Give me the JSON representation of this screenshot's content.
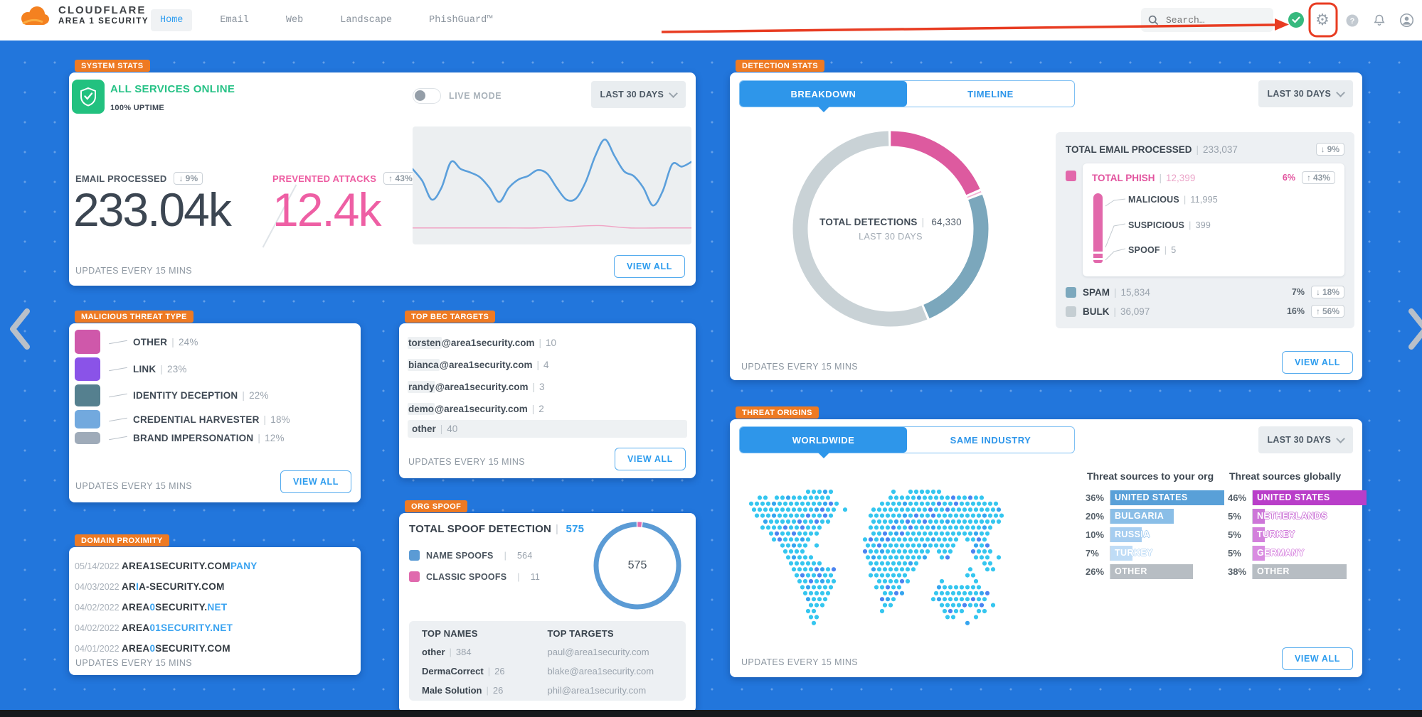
{
  "nav": {
    "brand": {
      "line1": "CLOUDFLARE",
      "line2": "AREA 1 SECURITY"
    },
    "items": [
      {
        "label": "Home",
        "active": true
      },
      {
        "label": "Email",
        "active": false
      },
      {
        "label": "Web",
        "active": false
      },
      {
        "label": "Landscape",
        "active": false
      },
      {
        "label": "PhishGuard™",
        "active": false
      }
    ],
    "search_placeholder": "Search…"
  },
  "annotation": {
    "color": "#e83c22"
  },
  "cards": {
    "system": {
      "tag": "SYSTEM STATS",
      "status": "ALL SERVICES ONLINE",
      "uptime": "100% UPTIME",
      "live_mode": "LIVE MODE",
      "range": "LAST 30 DAYS",
      "email": {
        "label": "EMAIL PROCESSED",
        "arrow": "↓",
        "badge": "9%",
        "value": "233.04k"
      },
      "attacks": {
        "label": "PREVENTED ATTACKS",
        "arrow": "↑",
        "badge": "43%",
        "value": "12.4k"
      },
      "updates": "UPDATES EVERY 15 MINS",
      "view_all": "VIEW ALL"
    },
    "mtt": {
      "tag": "MALICIOUS THREAT TYPE",
      "items": [
        {
          "label": "OTHER",
          "pct": 24,
          "pct_label": "24%",
          "color": "#cf58aa"
        },
        {
          "label": "LINK",
          "pct": 23,
          "pct_label": "23%",
          "color": "#8a53e8"
        },
        {
          "label": "IDENTITY DECEPTION",
          "pct": 22,
          "pct_label": "22%",
          "color": "#55808f"
        },
        {
          "label": "CREDENTIAL HARVESTER",
          "pct": 18,
          "pct_label": "18%",
          "color": "#72a9de"
        },
        {
          "label": "BRAND IMPERSONATION",
          "pct": 12,
          "pct_label": "12%",
          "color": "#9fabb9"
        }
      ],
      "updates": "UPDATES EVERY 15 MINS",
      "view_all": "VIEW ALL"
    },
    "domain": {
      "tag": "DOMAIN PROXIMITY",
      "rows": [
        {
          "date": "05/14/2022",
          "segments": [
            {
              "t": "AREA1SECURITY.COM",
              "hl": false
            },
            {
              "t": "PANY",
              "hl": true
            }
          ]
        },
        {
          "date": "04/03/2022",
          "segments": [
            {
              "t": "AR",
              "hl": false
            },
            {
              "t": "I",
              "hl": true
            },
            {
              "t": "A-SECURITY.COM",
              "hl": false
            }
          ]
        },
        {
          "date": "04/02/2022",
          "segments": [
            {
              "t": "AREA",
              "hl": false
            },
            {
              "t": "0",
              "hl": true
            },
            {
              "t": "SECURITY.",
              "hl": false
            },
            {
              "t": "NET",
              "hl": true
            }
          ]
        },
        {
          "date": "04/02/2022",
          "segments": [
            {
              "t": "AREA",
              "hl": false
            },
            {
              "t": "01SECURITY.NET",
              "hl": true
            }
          ]
        },
        {
          "date": "04/01/2022",
          "segments": [
            {
              "t": "AREA",
              "hl": false
            },
            {
              "t": "0",
              "hl": true
            },
            {
              "t": "SECURITY.COM",
              "hl": false
            }
          ]
        }
      ],
      "updates": "UPDATES EVERY 15 MINS"
    },
    "bec": {
      "tag": "TOP BEC TARGETS",
      "rows": [
        {
          "user": "torsten",
          "domain": "@area1security.com",
          "count": "10"
        },
        {
          "user": "bianca",
          "domain": "@area1security.com",
          "count": "4"
        },
        {
          "user": "randy",
          "domain": "@area1security.com",
          "count": "3"
        },
        {
          "user": "demo",
          "domain": "@area1security.com",
          "count": "2"
        }
      ],
      "other": {
        "label": "other",
        "count": "40"
      },
      "updates": "UPDATES EVERY 15 MINS",
      "view_all": "VIEW ALL"
    },
    "spoof": {
      "tag": "ORG SPOOF",
      "title": "TOTAL SPOOF DETECTION",
      "total": "575",
      "legend": [
        {
          "label": "NAME SPOOFS",
          "value": "564",
          "color": "#5b9bd5"
        },
        {
          "label": "CLASSIC SPOOFS",
          "value": "11",
          "color": "#e06aae"
        }
      ],
      "donut_segments": [
        {
          "v": 11,
          "c": "#e06aae"
        },
        {
          "v": 564,
          "c": "#5b9bd5"
        }
      ],
      "names_header": "TOP NAMES",
      "names": [
        {
          "label": "other",
          "value": "384"
        },
        {
          "label": "DermaCorrect",
          "value": "26"
        },
        {
          "label": "Male Solution",
          "value": "26"
        }
      ],
      "targets_header": "TOP TARGETS",
      "targets": [
        "paul@area1security.com",
        "blake@area1security.com",
        "phil@area1security.com"
      ]
    },
    "detect": {
      "tag": "DETECTION STATS",
      "tab1": "BREAKDOWN",
      "tab2": "TIMELINE",
      "range": "LAST 30 DAYS",
      "donut": {
        "center_label": "TOTAL DETECTIONS",
        "center_value": "64,330",
        "center_sub": "LAST 30 DAYS",
        "segments": [
          {
            "v": 11995,
            "c": "#dd5a9f"
          },
          {
            "v": 404,
            "c": "#f2b3d4"
          },
          {
            "v": 15834,
            "c": "#7ba7bc"
          },
          {
            "v": 36097,
            "c": "#c9d2d6"
          }
        ]
      },
      "total_row": {
        "label": "TOTAL EMAIL PROCESSED",
        "value": "233,037",
        "arrow": "↓",
        "badge": "9%"
      },
      "phish": {
        "label": "TOTAL PHISH",
        "value": "12,399",
        "pct": "6%",
        "arrow": "↑",
        "badge": "43%",
        "color": "#e268ab",
        "sub": [
          {
            "label": "MALICIOUS",
            "value": "11,995"
          },
          {
            "label": "SUSPICIOUS",
            "value": "399"
          },
          {
            "label": "SPOOF",
            "value": "5"
          }
        ]
      },
      "spam": {
        "label": "SPAM",
        "value": "15,834",
        "pct": "7%",
        "arrow": "↓",
        "badge": "18%",
        "color": "#7ca8bd"
      },
      "bulk": {
        "label": "BULK",
        "value": "36,097",
        "pct": "16%",
        "arrow": "↑",
        "badge": "56%",
        "color": "#c5ced3"
      },
      "updates": "UPDATES EVERY 15 MINS",
      "view_all": "VIEW ALL"
    },
    "threat": {
      "tag": "THREAT ORIGINS",
      "tab1": "WORLDWIDE",
      "tab2": "SAME INDUSTRY",
      "range": "LAST 30 DAYS",
      "org_heading": "Threat sources to your org",
      "global_heading": "Threat sources globally",
      "org_rows": [
        {
          "pct": 36,
          "pct_label": "36%",
          "label": "UNITED STATES",
          "color": "#59a0d8"
        },
        {
          "pct": 20,
          "pct_label": "20%",
          "label": "BULGARIA",
          "color": "#8abee7"
        },
        {
          "pct": 10,
          "pct_label": "10%",
          "label": "RUSSIA",
          "color": "#a6cdf0"
        },
        {
          "pct": 7,
          "pct_label": "7%",
          "label": "TURKEY",
          "color": "#bfdcf6"
        },
        {
          "pct": 26,
          "pct_label": "26%",
          "label": "OTHER",
          "color": "#b7bdc3"
        }
      ],
      "global_rows": [
        {
          "pct": 46,
          "pct_label": "46%",
          "label": "UNITED STATES",
          "color": "#b93ec9"
        },
        {
          "pct": 5,
          "pct_label": "5%",
          "label": "NETHERLANDS",
          "color": "#cd76d8"
        },
        {
          "pct": 5,
          "pct_label": "5%",
          "label": "TURKEY",
          "color": "#d381dc"
        },
        {
          "pct": 5,
          "pct_label": "5%",
          "label": "GERMANY",
          "color": "#d98ce1"
        },
        {
          "pct": 38,
          "pct_label": "38%",
          "label": "OTHER",
          "color": "#b7bdc3"
        }
      ],
      "updates": "UPDATES EVERY 15 MINS",
      "view_all": "VIEW ALL"
    }
  },
  "chart_data": [
    {
      "type": "pie",
      "title": "TOTAL DETECTIONS 64,330 LAST 30 DAYS",
      "labels": [
        "TOTAL PHISH",
        "SUSPICIOUS+SPOOF",
        "SPAM",
        "BULK"
      ],
      "values": [
        11995,
        404,
        15834,
        36097
      ]
    },
    {
      "type": "pie",
      "title": "TOTAL SPOOF DETECTION 575",
      "labels": [
        "CLASSIC SPOOFS",
        "NAME SPOOFS"
      ],
      "values": [
        11,
        564
      ]
    },
    {
      "type": "bar",
      "title": "Threat sources to your org",
      "categories": [
        "UNITED STATES",
        "BULGARIA",
        "RUSSIA",
        "TURKEY",
        "OTHER"
      ],
      "values": [
        36,
        20,
        10,
        7,
        26
      ]
    },
    {
      "type": "bar",
      "title": "Threat sources globally",
      "categories": [
        "UNITED STATES",
        "NETHERLANDS",
        "TURKEY",
        "GERMANY",
        "OTHER"
      ],
      "values": [
        46,
        5,
        5,
        5,
        38
      ]
    },
    {
      "type": "line",
      "title": "Email processed vs prevented attacks sparkline",
      "series": [
        {
          "name": "email-processed",
          "y_norm": [
            36,
            46,
            62,
            52,
            30,
            36,
            39,
            43,
            52,
            64,
            52,
            45,
            42,
            37,
            40,
            52,
            62,
            61,
            47,
            25,
            11,
            25,
            38,
            42,
            52,
            67,
            55,
            32,
            34,
            30
          ]
        },
        {
          "name": "prevented-attacks",
          "y_norm": [
            86,
            86,
            86,
            86,
            86,
            85,
            84,
            86,
            86,
            86
          ]
        }
      ]
    }
  ]
}
